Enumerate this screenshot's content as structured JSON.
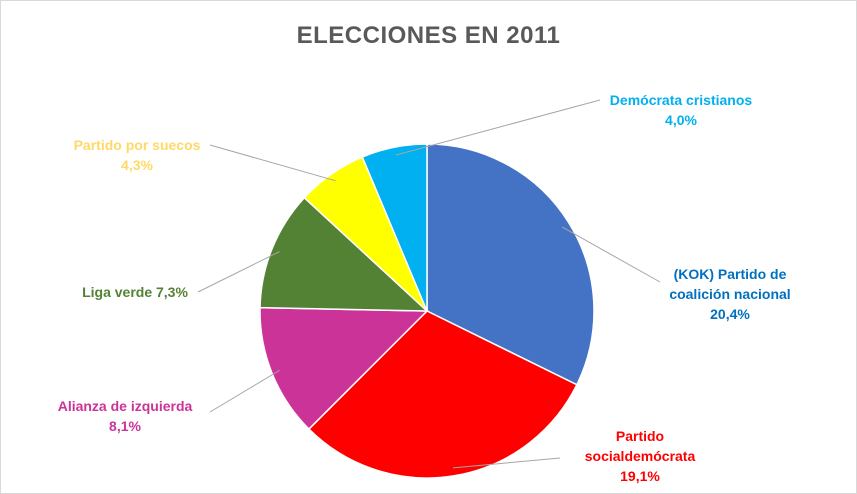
{
  "chart_data": {
    "type": "pie",
    "title": "ELECCIONES EN 2011",
    "slices": [
      {
        "label_lines": [
          "(KOK) Partido de",
          "coalición nacional"
        ],
        "value_text": "20,4%",
        "value": 20.4,
        "color": "#4472c4",
        "label_color": "#0070c0"
      },
      {
        "label_lines": [
          "Partido",
          "socialdemócrata"
        ],
        "value_text": "19,1%",
        "value": 19.1,
        "color": "#ff0000",
        "label_color": "#ff0000"
      },
      {
        "label_lines": [
          "Alianza de izquierda"
        ],
        "value_text": "8,1%",
        "value": 8.1,
        "color": "#cc3399",
        "label_color": "#cc3399"
      },
      {
        "label_lines": [
          "Liga verde 7,3%"
        ],
        "value_text": "",
        "value": 7.3,
        "color": "#548235",
        "label_color": "#548235"
      },
      {
        "label_lines": [
          "Partido por suecos"
        ],
        "value_text": "4,3%",
        "value": 4.3,
        "color": "#ffff00",
        "label_color": "#ffd966"
      },
      {
        "label_lines": [
          "Demócrata cristianos"
        ],
        "value_text": "4,0%",
        "value": 4.0,
        "color": "#00b0f0",
        "label_color": "#00b0f0"
      }
    ]
  }
}
